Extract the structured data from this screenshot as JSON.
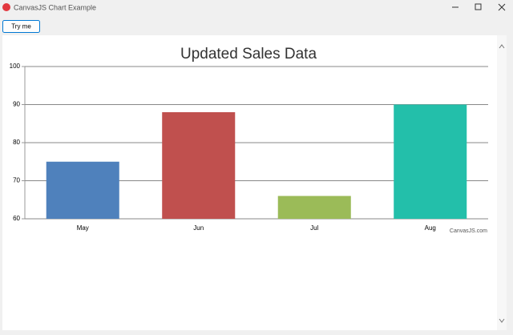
{
  "window": {
    "title": "CanvasJS Chart Example"
  },
  "toolbar": {
    "button": "Try me"
  },
  "chart_data": {
    "type": "bar",
    "title": "Updated Sales Data",
    "categories": [
      "May",
      "Jun",
      "Jul",
      "Aug"
    ],
    "values": [
      75,
      88,
      66,
      90
    ],
    "colors": [
      "#4f81bc",
      "#c0504e",
      "#9bbb58",
      "#23bfaa"
    ],
    "ylim": [
      60,
      100
    ],
    "yticks": [
      60,
      70,
      80,
      90,
      100
    ],
    "grid": true,
    "credit": "CanvasJS.com"
  }
}
